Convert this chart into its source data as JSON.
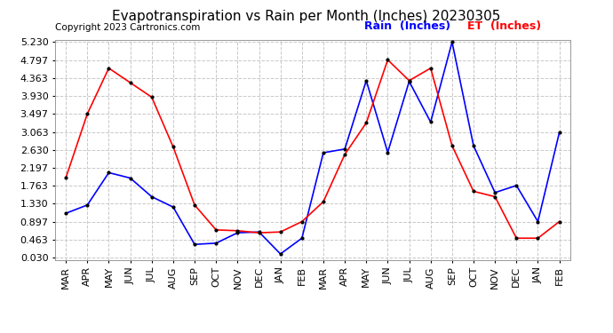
{
  "title": "Evapotranspiration vs Rain per Month (Inches) 20230305",
  "copyright": "Copyright 2023 Cartronics.com",
  "legend_rain": "Rain  (Inches)",
  "legend_et": "ET  (Inches)",
  "months": [
    "MAR",
    "APR",
    "MAY",
    "JUN",
    "JUL",
    "AUG",
    "SEP",
    "OCT",
    "NOV",
    "DEC",
    "JAN",
    "FEB",
    "MAR",
    "APR",
    "MAY",
    "JUN",
    "JUL",
    "AUG",
    "SEP",
    "OCT",
    "NOV",
    "DEC",
    "JAN",
    "FEB"
  ],
  "rain_values": [
    1.1,
    1.3,
    2.08,
    1.95,
    1.5,
    1.25,
    0.35,
    0.38,
    0.63,
    0.65,
    0.12,
    0.5,
    2.56,
    2.65,
    4.3,
    2.57,
    4.28,
    3.3,
    5.23,
    2.73,
    1.6,
    1.77,
    0.9,
    3.05
  ],
  "et_values": [
    1.96,
    3.5,
    4.6,
    4.25,
    3.9,
    2.7,
    1.3,
    0.7,
    0.68,
    0.63,
    0.65,
    0.9,
    1.38,
    2.52,
    3.28,
    4.8,
    4.3,
    4.6,
    2.73,
    1.63,
    1.5,
    0.5,
    0.5,
    0.9
  ],
  "yticks": [
    0.03,
    0.463,
    0.897,
    1.33,
    1.763,
    2.197,
    2.63,
    3.063,
    3.497,
    3.93,
    4.363,
    4.797,
    5.23
  ],
  "rain_color": "blue",
  "et_color": "red",
  "bg_color": "#ffffff",
  "grid_color": "#c8c8c8",
  "title_fontsize": 11,
  "tick_fontsize": 8,
  "copyright_fontsize": 7.5,
  "legend_fontsize": 9
}
